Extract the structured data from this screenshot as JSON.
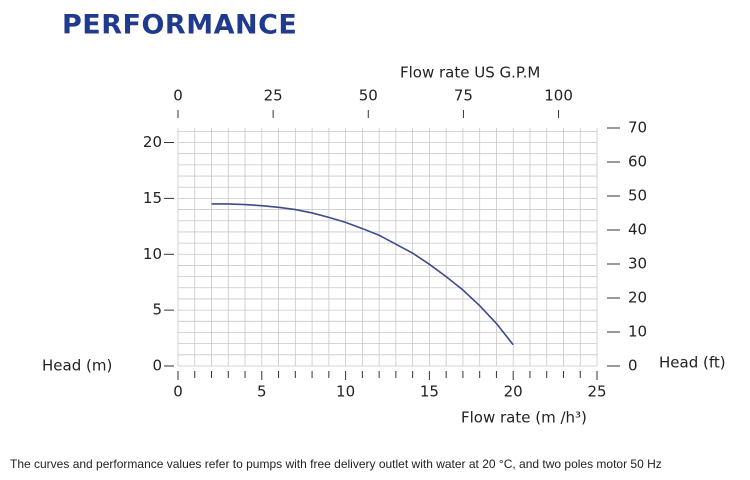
{
  "chart_data": {
    "type": "line",
    "title": "PERFORMANCE",
    "note": "The curves and performance values refer to pumps with free delivery outlet with water at 20 °C, and two poles motor 50 Hz",
    "xlabel": "Flow rate  (m /h³)",
    "ylabel": "Head (m)",
    "y2label": "Head (ft)",
    "x2label": "Flow rate US  G.P.M",
    "x": [
      2,
      3,
      4,
      5,
      6,
      7,
      8,
      9,
      10,
      11,
      12,
      13,
      14,
      15,
      16,
      17,
      18,
      19,
      20
    ],
    "values": [
      14.5,
      14.5,
      14.45,
      14.35,
      14.2,
      14.0,
      13.7,
      13.3,
      12.85,
      12.3,
      11.7,
      10.9,
      10.1,
      9.1,
      8.0,
      6.8,
      5.4,
      3.8,
      1.9
    ],
    "color": "#3d4b8c",
    "xlim": [
      0,
      25
    ],
    "xticks": [
      0,
      5,
      10,
      15,
      20,
      25
    ],
    "ylim": [
      0,
      21.3
    ],
    "yticks": [
      0,
      5,
      10,
      15,
      20
    ],
    "x2lim": [
      0,
      110.1
    ],
    "x2ticks": [
      0,
      25,
      50,
      75,
      100
    ],
    "y2lim": [
      0,
      70
    ],
    "y2ticks": [
      0,
      10,
      20,
      30,
      40,
      50,
      60,
      70
    ],
    "grid": true,
    "xgrid": [
      1,
      2,
      3,
      4,
      6,
      7,
      8,
      9,
      11,
      12,
      13,
      14,
      16,
      17,
      18,
      19,
      21,
      22,
      23,
      24
    ],
    "ygrid": [
      1,
      2,
      3,
      4,
      6,
      7,
      8,
      9,
      11,
      12,
      13,
      14,
      16,
      17,
      18,
      19,
      21
    ]
  }
}
